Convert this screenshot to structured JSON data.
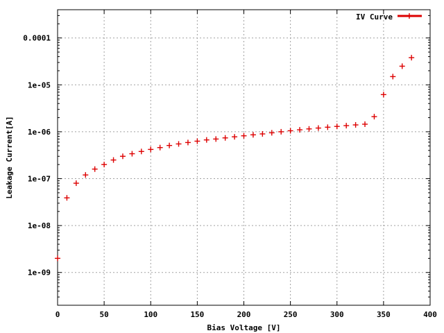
{
  "chart_data": {
    "type": "scatter",
    "xlabel": "Bias Voltage [V]",
    "ylabel": "Leakage Current[A]",
    "xlim": [
      0,
      400
    ],
    "ylim": [
      2e-10,
      0.0004
    ],
    "yscale": "log",
    "grid": true,
    "legend": "top-right",
    "x_ticks": [
      {
        "value": 0,
        "label": "0"
      },
      {
        "value": 50,
        "label": "50"
      },
      {
        "value": 100,
        "label": "100"
      },
      {
        "value": 150,
        "label": "150"
      },
      {
        "value": 200,
        "label": "200"
      },
      {
        "value": 250,
        "label": "250"
      },
      {
        "value": 300,
        "label": "300"
      },
      {
        "value": 350,
        "label": "350"
      },
      {
        "value": 400,
        "label": "400"
      }
    ],
    "y_ticks": [
      {
        "value": 1e-09,
        "label": "1e-09"
      },
      {
        "value": 1e-08,
        "label": "1e-08"
      },
      {
        "value": 1e-07,
        "label": "1e-07"
      },
      {
        "value": 1e-06,
        "label": "1e-06"
      },
      {
        "value": 1e-05,
        "label": "1e-05"
      },
      {
        "value": 0.0001,
        "label": "0.0001"
      }
    ],
    "series": [
      {
        "name": "IV Curve",
        "color": "#dd0000",
        "x": [
          0,
          10,
          20,
          30,
          40,
          50,
          60,
          70,
          80,
          90,
          100,
          110,
          120,
          130,
          140,
          150,
          160,
          170,
          180,
          190,
          200,
          210,
          220,
          230,
          240,
          250,
          260,
          270,
          280,
          290,
          300,
          310,
          320,
          330,
          340,
          350,
          360,
          370,
          380
        ],
        "y": [
          2e-09,
          3.9e-08,
          8e-08,
          1.2e-07,
          1.6e-07,
          2e-07,
          2.5e-07,
          3e-07,
          3.4e-07,
          3.8e-07,
          4.2e-07,
          4.6e-07,
          5.1e-07,
          5.5e-07,
          5.9e-07,
          6.3e-07,
          6.7e-07,
          7e-07,
          7.4e-07,
          7.8e-07,
          8.2e-07,
          8.6e-07,
          9e-07,
          9.5e-07,
          1e-06,
          1.05e-06,
          1.1e-06,
          1.15e-06,
          1.2e-06,
          1.25e-06,
          1.3e-06,
          1.35e-06,
          1.4e-06,
          1.45e-06,
          2.1e-06,
          6.2e-06,
          1.5e-05,
          2.5e-05,
          3.8e-05
        ]
      }
    ]
  }
}
